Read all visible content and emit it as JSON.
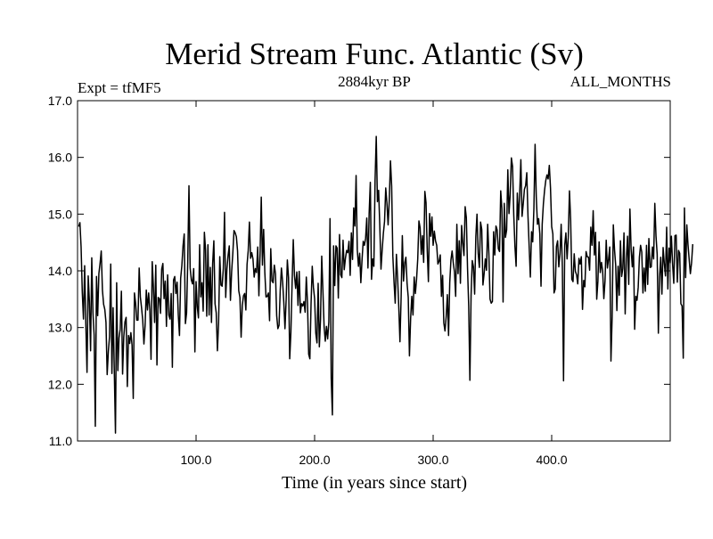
{
  "chart_data": {
    "type": "line",
    "title": "Merid Stream Func. Atlantic (Sv)",
    "left_annotation": "Expt = tfMF5",
    "center_annotation": "2884kyr BP",
    "right_annotation": "ALL_MONTHS",
    "xlabel": "Time (in years since start)",
    "ylabel": "",
    "xlim": [
      0,
      500
    ],
    "ylim": [
      11.0,
      17.0
    ],
    "x_ticks": [
      100,
      200,
      300,
      400
    ],
    "x_tick_labels": [
      "100.0",
      "200.0",
      "300.0",
      "400.0"
    ],
    "y_ticks": [
      11,
      12,
      13,
      14,
      15,
      16,
      17
    ],
    "y_tick_labels": [
      "11.0",
      "12.0",
      "13.0",
      "14.0",
      "15.0",
      "16.0",
      "17.0"
    ],
    "grid": false,
    "series": [
      {
        "name": "tfMF5",
        "x_start": 1,
        "x_step": 1,
        "values": [
          14.78,
          14.85,
          14.42,
          13.62,
          13.15,
          14.09,
          13.06,
          12.21,
          13.91,
          13.46,
          12.59,
          14.23,
          13.26,
          12.87,
          11.26,
          13.9,
          13.21,
          13.95,
          14.13,
          14.35,
          13.66,
          13.41,
          13.32,
          13.09,
          12.17,
          12.58,
          12.84,
          14.12,
          12.19,
          13.35,
          12.25,
          11.14,
          13.79,
          12.24,
          12.82,
          12.97,
          13.64,
          12.18,
          12.83,
          13.1,
          13.18,
          11.96,
          12.86,
          12.72,
          12.91,
          12.69,
          11.75,
          13.61,
          13.43,
          13.13,
          13.13,
          14.05,
          13.54,
          13.35,
          13.13,
          12.71,
          13.04,
          13.66,
          13.31,
          13.61,
          13.32,
          12.44,
          14.16,
          13.71,
          13.09,
          14.1,
          12.34,
          13.53,
          13.51,
          13.25,
          14.03,
          14.13,
          13.51,
          13.82,
          13.02,
          13.93,
          13.22,
          13.15,
          13.6,
          12.3,
          13.84,
          13.9,
          13.6,
          13.8,
          13.22,
          12.86,
          13.87,
          14.09,
          14.44,
          14.65,
          13.07,
          13.26,
          14.2,
          15.5,
          14.05,
          13.84,
          13.77,
          14.04,
          12.57,
          13.81,
          13.37,
          13.17,
          14.46,
          13.54,
          13.79,
          13.29,
          14.68,
          14.37,
          13.2,
          14.46,
          13.22,
          14.06,
          13.09,
          14.13,
          14.53,
          13.42,
          13.26,
          12.59,
          13.08,
          14.25,
          13.75,
          13.73,
          14.04,
          15.03,
          13.53,
          14.03,
          14.27,
          14.44,
          13.48,
          13.98,
          14.31,
          14.71,
          14.67,
          14.6,
          14.35,
          13.65,
          13.53,
          12.83,
          13.39,
          13.56,
          13.6,
          13.31,
          14.11,
          14.36,
          14.86,
          14.22,
          14.32,
          14.21,
          13.89,
          14.04,
          13.97,
          14.42,
          13.56,
          14.31,
          15.3,
          14.1,
          14.73,
          13.97,
          13.54,
          13.55,
          13.61,
          13.12,
          14.39,
          13.82,
          13.79,
          14.1,
          13.95,
          13.21,
          12.98,
          13.04,
          13.66,
          14.05,
          13.81,
          13.45,
          12.98,
          13.49,
          14.19,
          13.88,
          12.45,
          12.92,
          13.77,
          14.55,
          13.92,
          13.69,
          13.98,
          13.39,
          13.99,
          13.26,
          13.42,
          13.38,
          13.46,
          13.27,
          13.89,
          13.44,
          12.53,
          12.45,
          13.42,
          14.08,
          13.71,
          13.51,
          12.9,
          12.73,
          13.78,
          12.66,
          13.15,
          14.26,
          13.65,
          13.02,
          12.76,
          13.02,
          12.8,
          13.1,
          14.92,
          12.11,
          11.46,
          14.44,
          13.74,
          14.44,
          14.4,
          13.52,
          14.64,
          13.93,
          13.88,
          14.54,
          14.02,
          14.22,
          14.36,
          14.32,
          14.52,
          13.92,
          14.67,
          14.2,
          15.11,
          14.79,
          15.68,
          14.37,
          14.08,
          14.31,
          13.79,
          14.19,
          14.52,
          14.45,
          14.57,
          14.93,
          14.05,
          15.01,
          15.56,
          13.85,
          14.21,
          14.08,
          15.59,
          16.37,
          15.22,
          15.42,
          14.79,
          14.03,
          14.37,
          14.66,
          14.87,
          15.46,
          15.2,
          14.81,
          15.25,
          15.94,
          15.49,
          14.26,
          13.8,
          13.43,
          14.29,
          13.88,
          13.37,
          12.75,
          13.55,
          14.62,
          13.82,
          14.14,
          14.24,
          13.78,
          13.53,
          12.5,
          13.16,
          13.55,
          13.22,
          13.89,
          13.6,
          13.85,
          14.21,
          14.88,
          14.76,
          14.29,
          14.62,
          14.15,
          15.4,
          15.2,
          14.36,
          13.81,
          15.01,
          14.61,
          14.95,
          14.45,
          14.7,
          14.53,
          14.45,
          14.12,
          14.17,
          14.28,
          13.55,
          13.92,
          13.08,
          12.94,
          13.19,
          13.58,
          12.86,
          13.79,
          14.19,
          14.35,
          14.14,
          13.98,
          13.55,
          14.82,
          13.95,
          14.53,
          13.78,
          14.8,
          14.49,
          14.27,
          15.13,
          14.94,
          14.05,
          13.38,
          12.07,
          13.56,
          14.18,
          14.07,
          13.59,
          14.6,
          15.0,
          14.31,
          14.06,
          14.86,
          14.73,
          13.75,
          13.95,
          14.21,
          14.01,
          14.82,
          14.31,
          13.5,
          13.43,
          13.46,
          14.69,
          14.28,
          14.79,
          14.72,
          14.39,
          14.34,
          15.41,
          15.1,
          13.45,
          15.19,
          14.59,
          14.72,
          15.78,
          15.01,
          15.35,
          15.99,
          15.84,
          14.99,
          14.43,
          14.08,
          15.37,
          14.9,
          15.35,
          15.96,
          14.96,
          15.18,
          15.44,
          15.5,
          15.73,
          14.97,
          14.43,
          13.89,
          14.69,
          14.51,
          15.1,
          16.23,
          15.3,
          14.82,
          14.92,
          14.65,
          13.73,
          14.82,
          15.18,
          15.42,
          15.59,
          15.69,
          15.62,
          15.86,
          15.46,
          14.78,
          14.65,
          13.61,
          13.68,
          14.43,
          14.53,
          14.07,
          14.3,
          14.82,
          14.07,
          12.06,
          14.45,
          14.67,
          14.21,
          14.59,
          15.41,
          14.9,
          13.85,
          13.81,
          14.3,
          13.99,
          13.93,
          13.77,
          14.22,
          14.12,
          14.25,
          13.32,
          13.83,
          13.72,
          14.34,
          14.25,
          14.24,
          14.01,
          14.77,
          14.45,
          15.06,
          14.28,
          14.68,
          13.5,
          13.82,
          14.51,
          13.97,
          14.15,
          14.0,
          13.51,
          13.82,
          14.54,
          14.05,
          14.21,
          14.42,
          12.41,
          13.19,
          14.81,
          14.38,
          14.1,
          13.3,
          14.08,
          13.57,
          14.53,
          13.9,
          14.04,
          14.67,
          13.24,
          14.21,
          14.61,
          13.76,
          15.09,
          14.39,
          14.07,
          14.42,
          12.97,
          13.55,
          13.48,
          13.71,
          14.24,
          14.45,
          14.33,
          13.61,
          14.05,
          13.64,
          14.45,
          13.76,
          14.57,
          14.06,
          14.07,
          14.42,
          14.21,
          15.19,
          14.62,
          14.29,
          12.9,
          13.89,
          14.24,
          13.59,
          14.41,
          14.13,
          13.91,
          14.77,
          13.68,
          14.4,
          14.14,
          14.61,
          14.12,
          13.78,
          14.62,
          14.63,
          13.8,
          14.36,
          14.31,
          13.42,
          13.38,
          12.46,
          15.11,
          13.88,
          14.81,
          14.46,
          14.2,
          13.95,
          14.14,
          14.47
        ]
      }
    ]
  }
}
